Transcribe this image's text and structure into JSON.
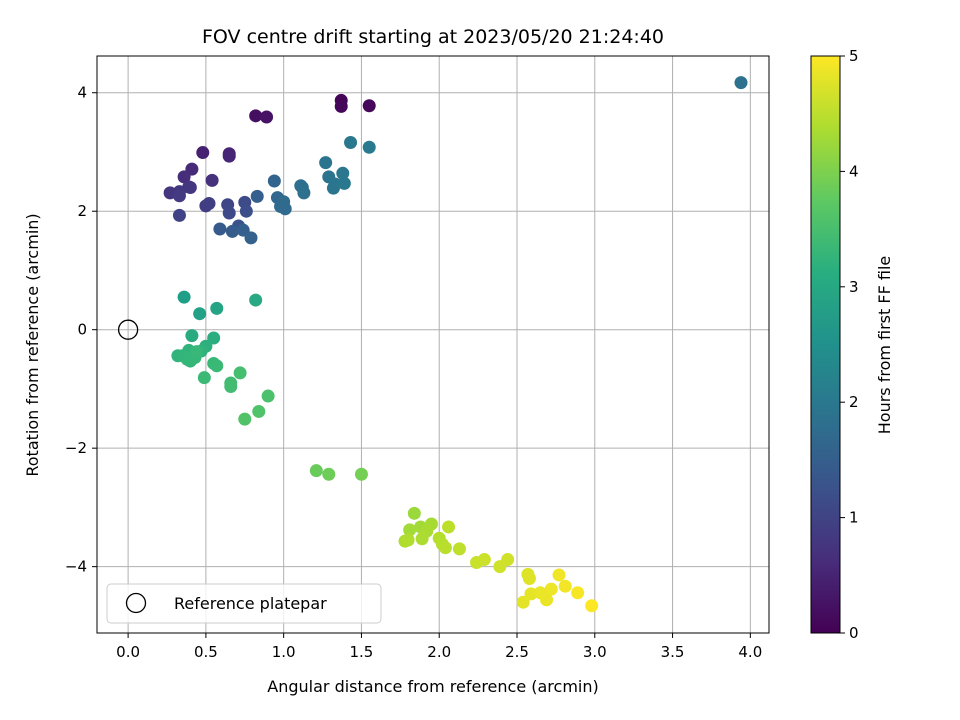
{
  "chart_data": {
    "type": "scatter",
    "title": "FOV centre drift starting at 2023/05/20 21:24:40",
    "xlabel": "Angular distance from reference (arcmin)",
    "ylabel": "Rotation from reference (arcmin)",
    "xlim": [
      -0.2,
      4.12
    ],
    "ylim": [
      -5.12,
      4.62
    ],
    "xticks": [
      "0.0",
      "0.5",
      "1.0",
      "1.5",
      "2.0",
      "2.5",
      "3.0",
      "3.5",
      "4.0"
    ],
    "yticks": [
      "4",
      "2",
      "0",
      "−2",
      "−4"
    ],
    "grid": true,
    "legend": {
      "placement": "lower-left",
      "entries": [
        "Reference platepar"
      ]
    },
    "reference_point": {
      "x": 0.0,
      "y": 0.0
    },
    "colorbar": {
      "label": "Hours from first FF file",
      "range": [
        0,
        5
      ],
      "ticks": [
        "0",
        "1",
        "2",
        "3",
        "4",
        "5"
      ],
      "colormap": "viridis"
    },
    "points": [
      {
        "x": 1.37,
        "y": 3.87,
        "c": 0.05
      },
      {
        "x": 1.37,
        "y": 3.77,
        "c": 0.08
      },
      {
        "x": 1.55,
        "y": 3.78,
        "c": 0.1
      },
      {
        "x": 0.82,
        "y": 3.61,
        "c": 0.2
      },
      {
        "x": 0.89,
        "y": 3.59,
        "c": 0.25
      },
      {
        "x": 0.48,
        "y": 2.99,
        "c": 0.45
      },
      {
        "x": 0.65,
        "y": 2.97,
        "c": 0.5
      },
      {
        "x": 0.65,
        "y": 2.93,
        "c": 0.52
      },
      {
        "x": 0.41,
        "y": 2.71,
        "c": 0.6
      },
      {
        "x": 0.36,
        "y": 2.58,
        "c": 0.65
      },
      {
        "x": 0.54,
        "y": 2.52,
        "c": 0.7
      },
      {
        "x": 0.39,
        "y": 2.41,
        "c": 0.75
      },
      {
        "x": 0.4,
        "y": 2.4,
        "c": 0.78
      },
      {
        "x": 0.27,
        "y": 2.31,
        "c": 0.8
      },
      {
        "x": 0.33,
        "y": 2.33,
        "c": 0.82
      },
      {
        "x": 0.33,
        "y": 2.26,
        "c": 0.85
      },
      {
        "x": 0.5,
        "y": 2.09,
        "c": 0.9
      },
      {
        "x": 0.52,
        "y": 2.13,
        "c": 0.92
      },
      {
        "x": 0.33,
        "y": 1.93,
        "c": 1.0
      },
      {
        "x": 0.64,
        "y": 2.11,
        "c": 1.05
      },
      {
        "x": 0.65,
        "y": 1.97,
        "c": 1.1
      },
      {
        "x": 0.75,
        "y": 2.15,
        "c": 1.15
      },
      {
        "x": 0.76,
        "y": 2.0,
        "c": 1.2
      },
      {
        "x": 0.71,
        "y": 1.75,
        "c": 1.3
      },
      {
        "x": 0.59,
        "y": 1.7,
        "c": 1.4
      },
      {
        "x": 0.67,
        "y": 1.66,
        "c": 1.45
      },
      {
        "x": 0.74,
        "y": 1.68,
        "c": 1.5
      },
      {
        "x": 0.79,
        "y": 1.55,
        "c": 1.55
      },
      {
        "x": 0.83,
        "y": 2.25,
        "c": 1.5
      },
      {
        "x": 0.94,
        "y": 2.51,
        "c": 1.6
      },
      {
        "x": 0.96,
        "y": 2.23,
        "c": 1.65
      },
      {
        "x": 0.98,
        "y": 2.08,
        "c": 1.7
      },
      {
        "x": 1.01,
        "y": 2.04,
        "c": 1.72
      },
      {
        "x": 1.0,
        "y": 2.16,
        "c": 1.74
      },
      {
        "x": 1.11,
        "y": 2.43,
        "c": 1.8
      },
      {
        "x": 1.12,
        "y": 2.4,
        "c": 1.82
      },
      {
        "x": 1.13,
        "y": 2.31,
        "c": 1.85
      },
      {
        "x": 1.27,
        "y": 2.82,
        "c": 1.9
      },
      {
        "x": 1.29,
        "y": 2.58,
        "c": 1.92
      },
      {
        "x": 1.32,
        "y": 2.39,
        "c": 1.95
      },
      {
        "x": 1.33,
        "y": 2.46,
        "c": 1.96
      },
      {
        "x": 1.38,
        "y": 2.64,
        "c": 1.98
      },
      {
        "x": 1.39,
        "y": 2.47,
        "c": 2.0
      },
      {
        "x": 1.43,
        "y": 3.16,
        "c": 2.0
      },
      {
        "x": 1.55,
        "y": 3.08,
        "c": 2.05
      },
      {
        "x": 3.94,
        "y": 4.17,
        "c": 1.85
      },
      {
        "x": 0.36,
        "y": 0.55,
        "c": 2.8
      },
      {
        "x": 0.46,
        "y": 0.27,
        "c": 2.85
      },
      {
        "x": 0.57,
        "y": 0.36,
        "c": 2.9
      },
      {
        "x": 0.82,
        "y": 0.5,
        "c": 3.0
      },
      {
        "x": 0.41,
        "y": -0.1,
        "c": 3.05
      },
      {
        "x": 0.55,
        "y": -0.14,
        "c": 3.1
      },
      {
        "x": 0.5,
        "y": -0.28,
        "c": 3.15
      },
      {
        "x": 0.47,
        "y": -0.36,
        "c": 3.2
      },
      {
        "x": 0.39,
        "y": -0.35,
        "c": 3.22
      },
      {
        "x": 0.32,
        "y": -0.44,
        "c": 3.25
      },
      {
        "x": 0.35,
        "y": -0.44,
        "c": 3.27
      },
      {
        "x": 0.38,
        "y": -0.5,
        "c": 3.3
      },
      {
        "x": 0.4,
        "y": -0.53,
        "c": 3.32
      },
      {
        "x": 0.43,
        "y": -0.47,
        "c": 3.34
      },
      {
        "x": 0.44,
        "y": -0.37,
        "c": 3.35
      },
      {
        "x": 0.55,
        "y": -0.57,
        "c": 3.36
      },
      {
        "x": 0.57,
        "y": -0.61,
        "c": 3.38
      },
      {
        "x": 0.49,
        "y": -0.81,
        "c": 3.4
      },
      {
        "x": 0.66,
        "y": -0.9,
        "c": 3.45
      },
      {
        "x": 0.66,
        "y": -0.96,
        "c": 3.47
      },
      {
        "x": 0.72,
        "y": -0.73,
        "c": 3.5
      },
      {
        "x": 0.9,
        "y": -1.12,
        "c": 3.55
      },
      {
        "x": 0.84,
        "y": -1.38,
        "c": 3.6
      },
      {
        "x": 0.75,
        "y": -1.51,
        "c": 3.62
      },
      {
        "x": 1.21,
        "y": -2.38,
        "c": 3.85
      },
      {
        "x": 1.29,
        "y": -2.44,
        "c": 3.9
      },
      {
        "x": 1.5,
        "y": -2.44,
        "c": 3.95
      },
      {
        "x": 1.84,
        "y": -3.1,
        "c": 4.25
      },
      {
        "x": 1.81,
        "y": -3.38,
        "c": 4.3
      },
      {
        "x": 1.88,
        "y": -3.33,
        "c": 4.32
      },
      {
        "x": 1.95,
        "y": -3.28,
        "c": 4.34
      },
      {
        "x": 1.92,
        "y": -3.4,
        "c": 4.36
      },
      {
        "x": 1.89,
        "y": -3.53,
        "c": 4.38
      },
      {
        "x": 1.78,
        "y": -3.57,
        "c": 4.4
      },
      {
        "x": 1.8,
        "y": -3.55,
        "c": 4.42
      },
      {
        "x": 2.0,
        "y": -3.52,
        "c": 4.44
      },
      {
        "x": 2.02,
        "y": -3.62,
        "c": 4.46
      },
      {
        "x": 2.04,
        "y": -3.68,
        "c": 4.48
      },
      {
        "x": 2.06,
        "y": -3.33,
        "c": 4.5
      },
      {
        "x": 2.13,
        "y": -3.7,
        "c": 4.52
      },
      {
        "x": 2.24,
        "y": -3.93,
        "c": 4.6
      },
      {
        "x": 2.29,
        "y": -3.88,
        "c": 4.62
      },
      {
        "x": 2.39,
        "y": -4.0,
        "c": 4.65
      },
      {
        "x": 2.44,
        "y": -3.88,
        "c": 4.66
      },
      {
        "x": 2.57,
        "y": -4.13,
        "c": 4.75
      },
      {
        "x": 2.58,
        "y": -4.2,
        "c": 4.77
      },
      {
        "x": 2.54,
        "y": -4.6,
        "c": 4.8
      },
      {
        "x": 2.59,
        "y": -4.46,
        "c": 4.82
      },
      {
        "x": 2.65,
        "y": -4.44,
        "c": 4.85
      },
      {
        "x": 2.69,
        "y": -4.56,
        "c": 4.86
      },
      {
        "x": 2.72,
        "y": -4.38,
        "c": 4.88
      },
      {
        "x": 2.77,
        "y": -4.14,
        "c": 4.9
      },
      {
        "x": 2.81,
        "y": -4.33,
        "c": 4.92
      },
      {
        "x": 2.89,
        "y": -4.44,
        "c": 4.95
      },
      {
        "x": 2.98,
        "y": -4.66,
        "c": 5.0
      }
    ]
  }
}
